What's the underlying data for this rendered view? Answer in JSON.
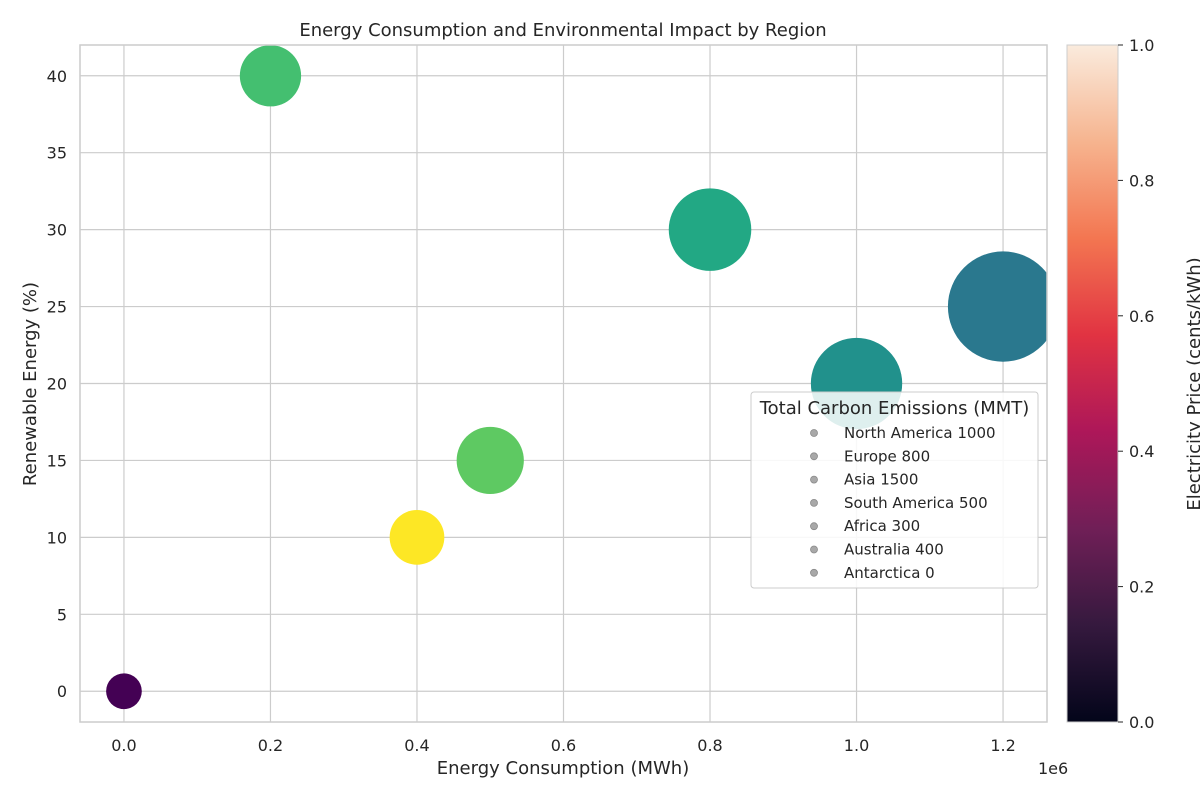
{
  "chart_data": {
    "type": "scatter",
    "title": "Energy Consumption and Environmental Impact by Region",
    "xlabel": "Energy Consumption (MWh)",
    "ylabel": "Renewable Energy (%)",
    "x_offset_label": "1e6",
    "xlim": [
      -60000,
      1260000
    ],
    "ylim": [
      -2,
      42
    ],
    "x_ticks": [
      0,
      200000,
      400000,
      600000,
      800000,
      1000000,
      1200000
    ],
    "x_tick_labels": [
      "0.0",
      "0.2",
      "0.4",
      "0.6",
      "0.8",
      "1.0",
      "1.2"
    ],
    "y_ticks": [
      0,
      5,
      10,
      15,
      20,
      25,
      30,
      35,
      40
    ],
    "y_tick_labels": [
      "0",
      "5",
      "10",
      "15",
      "20",
      "25",
      "30",
      "35",
      "40"
    ],
    "grid": true,
    "points": [
      {
        "region": "North America",
        "x": 1000000,
        "y": 20,
        "emissions": 1000,
        "color": "#21918c"
      },
      {
        "region": "Europe",
        "x": 800000,
        "y": 30,
        "emissions": 800,
        "color": "#22a884"
      },
      {
        "region": "Asia",
        "x": 1200000,
        "y": 25,
        "emissions": 1500,
        "color": "#2a788e"
      },
      {
        "region": "South America",
        "x": 500000,
        "y": 15,
        "emissions": 500,
        "color": "#5ec962"
      },
      {
        "region": "Africa",
        "x": 400000,
        "y": 10,
        "emissions": 300,
        "color": "#fde725"
      },
      {
        "region": "Australia",
        "x": 200000,
        "y": 40,
        "emissions": 400,
        "color": "#44bf70"
      },
      {
        "region": "Antarctica",
        "x": 0,
        "y": 0,
        "emissions": 0,
        "color": "#440154"
      }
    ],
    "legend": {
      "title": "Total Carbon Emissions (MMT)",
      "placement": "center-right",
      "entries": [
        "North America 1000",
        "Europe 800",
        "Asia 1500",
        "South America 500",
        "Africa 300",
        "Australia 400",
        "Antarctica 0"
      ],
      "marker_color": "#a8a8a8"
    },
    "colorbar": {
      "label": "Electricity Price (cents/kWh)",
      "range": [
        0,
        1
      ],
      "ticks": [
        0,
        0.2,
        0.4,
        0.6,
        0.8,
        1.0
      ],
      "tick_labels": [
        "0.0",
        "0.2",
        "0.4",
        "0.6",
        "0.8",
        "1.0"
      ],
      "colormap_stops": [
        "#03051a",
        "#35193e",
        "#701f57",
        "#ad1759",
        "#e13342",
        "#f37651",
        "#f6b48f",
        "#faebdd"
      ]
    }
  }
}
